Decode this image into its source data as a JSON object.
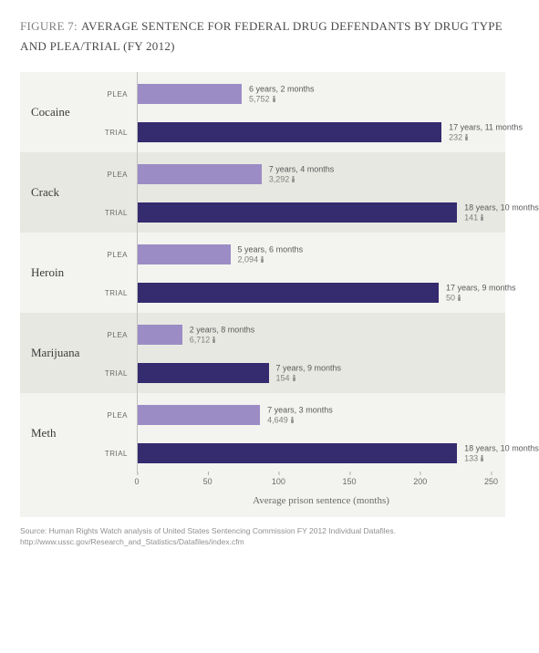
{
  "figure_label": "FIGURE 7:",
  "figure_title": "AVERAGE SENTENCE FOR FEDERAL DRUG DEFENDANTS BY DRUG TYPE AND PLEA/TRIAL (FY 2012)",
  "chart": {
    "type": "bar",
    "orientation": "horizontal",
    "x_axis_label": "Average prison sentence (months)",
    "x_max": 260,
    "x_ticks": [
      0,
      50,
      100,
      150,
      200,
      250
    ],
    "plea_color": "#9b8cc5",
    "trial_color": "#352b6f",
    "bg_odd": "#f3f3ef",
    "bg_even": "#e8e8e2",
    "text_color": "#5a5a5a",
    "drugs": [
      {
        "name": "Cocaine",
        "plea": {
          "label": "PLEA",
          "months": 74,
          "sentence": "6 years, 2 months",
          "count": "5,752"
        },
        "trial": {
          "label": "TRIAL",
          "months": 215,
          "sentence": "17 years, 11 months",
          "count": "232"
        }
      },
      {
        "name": "Crack",
        "plea": {
          "label": "PLEA",
          "months": 88,
          "sentence": "7 years, 4 months",
          "count": "3,292"
        },
        "trial": {
          "label": "TRIAL",
          "months": 226,
          "sentence": "18 years, 10 months",
          "count": "141"
        }
      },
      {
        "name": "Heroin",
        "plea": {
          "label": "PLEA",
          "months": 66,
          "sentence": "5 years, 6 months",
          "count": "2,094"
        },
        "trial": {
          "label": "TRIAL",
          "months": 213,
          "sentence": "17 years, 9 months",
          "count": "50"
        }
      },
      {
        "name": "Marijuana",
        "plea": {
          "label": "PLEA",
          "months": 32,
          "sentence": "2 years, 8 months",
          "count": "6,712"
        },
        "trial": {
          "label": "TRIAL",
          "months": 93,
          "sentence": "7 years, 9 months",
          "count": "154"
        }
      },
      {
        "name": "Meth",
        "plea": {
          "label": "PLEA",
          "months": 87,
          "sentence": "7 years, 3 months",
          "count": "4,649"
        },
        "trial": {
          "label": "TRIAL",
          "months": 226,
          "sentence": "18 years, 10 months",
          "count": "133"
        }
      }
    ]
  },
  "source_line1": "Source: Human Rights Watch analysis of United States Sentencing Commission FY 2012 Individual Datafiles.",
  "source_line2": "http://www.ussc.gov/Research_and_Statistics/Datafiles/index.cfm"
}
